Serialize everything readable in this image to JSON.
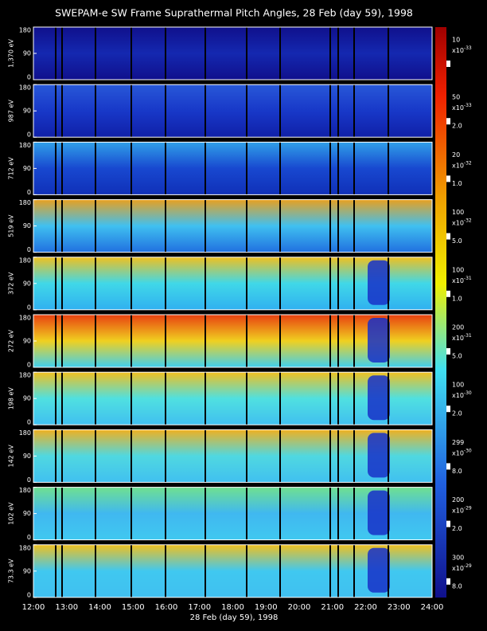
{
  "title": "SWEPAM-e SW Frame Suprathermal Pitch Angles, 28 Feb (day  59), 1998",
  "ylim": [
    0,
    180
  ],
  "yticks": [
    0,
    90,
    180
  ],
  "xticks": [
    "12:00",
    "13:00",
    "14:00",
    "15:00",
    "16:00",
    "17:00",
    "18:00",
    "19:00",
    "20:00",
    "21:00",
    "22:00",
    "23:00",
    "24:00"
  ],
  "xlabel": "28 Feb (day  59), 1998",
  "panels": [
    {
      "label": "1,370 eV",
      "max": "10",
      "multiplier": "x10",
      "exponent": "-33"
    },
    {
      "label": "987 eV",
      "max": "50",
      "multiplier": "x10",
      "exponent": "-33",
      "min": "2.0"
    },
    {
      "label": "712 eV",
      "max": "20",
      "multiplier": "x10",
      "exponent": "-32",
      "min": "1.0"
    },
    {
      "label": "519 eV",
      "max": "100",
      "multiplier": "x10",
      "exponent": "-32",
      "min": "5.0"
    },
    {
      "label": "372 eV",
      "max": "100",
      "multiplier": "x10",
      "exponent": "-31",
      "min": "1.0"
    },
    {
      "label": "272 eV",
      "max": "200",
      "multiplier": "x10",
      "exponent": "-31",
      "min": "5.0"
    },
    {
      "label": "198 eV",
      "max": "100",
      "multiplier": "x10",
      "exponent": "-30",
      "min": "2.0"
    },
    {
      "label": "142 eV",
      "max": "299",
      "multiplier": "x10",
      "exponent": "-30",
      "min": "8.0"
    },
    {
      "label": "102 eV",
      "max": "200",
      "multiplier": "x10",
      "exponent": "-29",
      "min": "2.0"
    },
    {
      "label": "73.3 eV",
      "max": "300",
      "multiplier": "x10",
      "exponent": "-29",
      "min": "8.0"
    }
  ]
}
